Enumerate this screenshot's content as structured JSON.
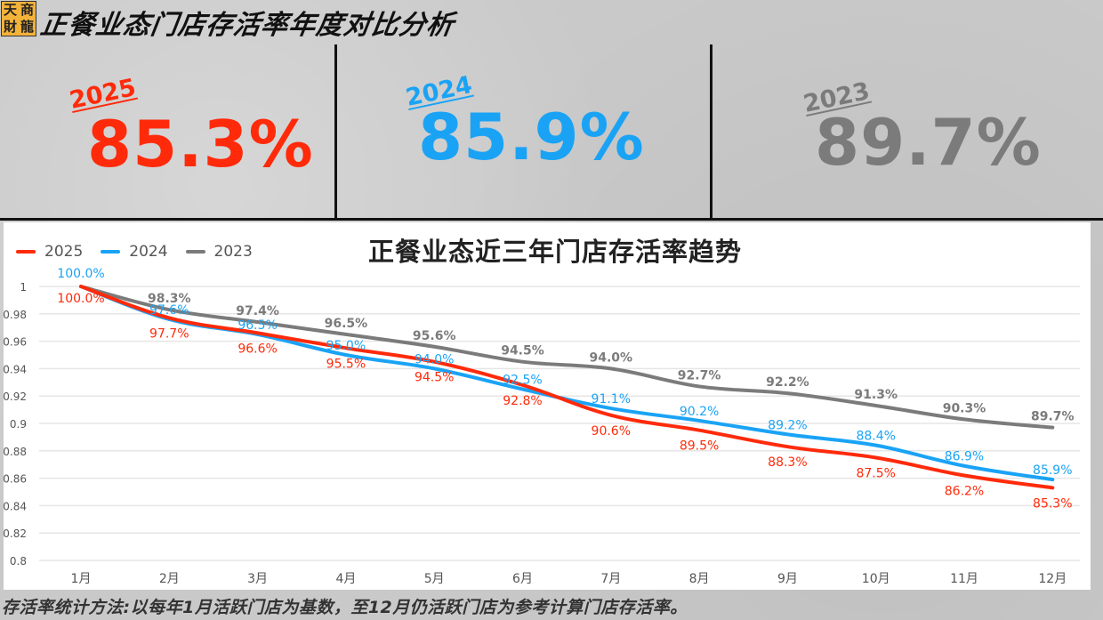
{
  "header": {
    "logo_chars": [
      "天",
      "商",
      "財",
      "龍"
    ],
    "title": "正餐业态门店存活率年度对比分析"
  },
  "kpis": [
    {
      "year": "2025",
      "value": "85.3%",
      "color": "#ff2a0a"
    },
    {
      "year": "2024",
      "value": "85.9%",
      "color": "#1aa3f5"
    },
    {
      "year": "2023",
      "value": "89.7%",
      "color": "#7b7b7b"
    }
  ],
  "footnote": "存活率统计方法:以每年1月活跃门店为基数，至12月仍活跃门店为参考计算门店存活率。",
  "chart_data": {
    "type": "line",
    "title": "正餐业态近三年门店存活率趋势",
    "xlabel": "",
    "ylabel": "",
    "categories": [
      "1月",
      "2月",
      "3月",
      "4月",
      "5月",
      "6月",
      "7月",
      "8月",
      "9月",
      "10月",
      "11月",
      "12月"
    ],
    "y_ticks": [
      "0.8",
      "0.82",
      "0.84",
      "0.86",
      "0.88",
      "0.9",
      "0.92",
      "0.94",
      "0.96",
      "0.98",
      "1"
    ],
    "ylim": [
      0.8,
      1.0
    ],
    "grid": true,
    "legend_position": "top-left",
    "series": [
      {
        "name": "2025",
        "color": "#ff2a0a",
        "values": [
          1.0,
          0.977,
          0.966,
          0.955,
          0.945,
          0.928,
          0.906,
          0.895,
          0.883,
          0.875,
          0.862,
          0.853
        ],
        "labels": [
          "100.0%",
          "97.7%",
          "96.6%",
          "95.5%",
          "94.5%",
          "92.8%",
          "90.6%",
          "89.5%",
          "88.3%",
          "87.5%",
          "86.2%",
          "85.3%"
        ]
      },
      {
        "name": "2024",
        "color": "#1aa3f5",
        "values": [
          1.0,
          0.976,
          0.965,
          0.95,
          0.94,
          0.925,
          0.911,
          0.902,
          0.892,
          0.884,
          0.869,
          0.859
        ],
        "labels": [
          "100.0%",
          "97.6%",
          "96.5%",
          "95.0%",
          "94.0%",
          "92.5%",
          "91.1%",
          "90.2%",
          "89.2%",
          "88.4%",
          "86.9%",
          "85.9%"
        ]
      },
      {
        "name": "2023",
        "color": "#7b7b7b",
        "values": [
          1.0,
          0.983,
          0.974,
          0.965,
          0.956,
          0.945,
          0.94,
          0.927,
          0.922,
          0.913,
          0.903,
          0.897
        ],
        "labels": [
          "",
          "98.3%",
          "97.4%",
          "96.5%",
          "95.6%",
          "94.5%",
          "94.0%",
          "92.7%",
          "92.2%",
          "91.3%",
          "90.3%",
          "89.7%"
        ]
      }
    ]
  }
}
